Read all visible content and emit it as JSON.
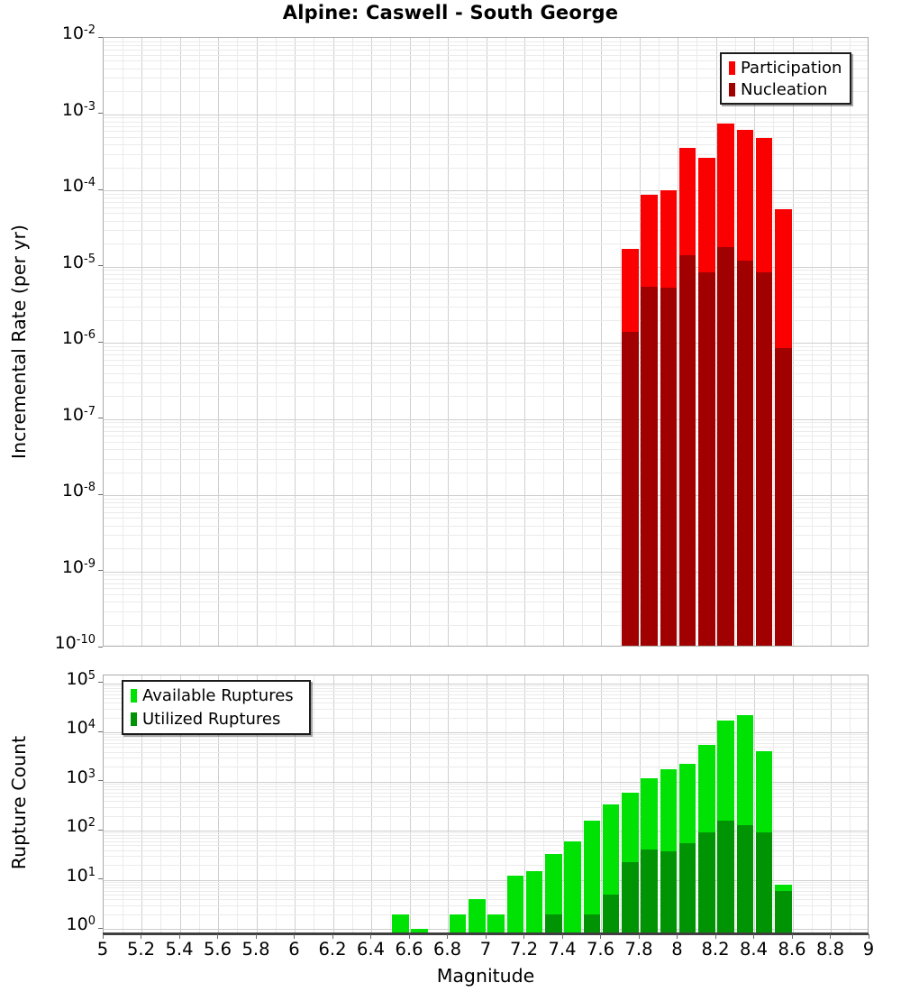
{
  "title": "Alpine: Caswell - South George",
  "colors": {
    "participation": "#FA0000",
    "nucleation": "#A00000",
    "available": "#00E104",
    "utilized": "#009404",
    "grid_major": "#cfcfcf",
    "grid_minor": "#ebebeb",
    "frame": "#ababab",
    "x_axis_line": "#3f3f3f",
    "legend_border": "#1c1c1c",
    "text": "#000000"
  },
  "x_axis": {
    "label": "Magnitude",
    "min": 5,
    "max": 9,
    "tick_step": 0.2,
    "tick_labels": [
      "5",
      "5.2",
      "5.4",
      "5.6",
      "5.8",
      "6",
      "6.2",
      "6.4",
      "6.6",
      "6.8",
      "7",
      "7.2",
      "7.4",
      "7.6",
      "7.8",
      "8",
      "8.2",
      "8.4",
      "8.6",
      "8.8",
      "9"
    ]
  },
  "chart_data": [
    {
      "type": "bar",
      "panel": "top",
      "title": "Alpine: Caswell - South George",
      "xlabel": "Magnitude",
      "ylabel": "Incremental Rate (per yr)",
      "y_scale": "log",
      "ylim": [
        1e-10,
        0.01
      ],
      "xlim": [
        5,
        9
      ],
      "grid": true,
      "legend_position": "top-right",
      "y_tick_exponents": [
        -2,
        -3,
        -4,
        -5,
        -6,
        -7,
        -8,
        -9,
        -10
      ],
      "bin_width": 0.1,
      "x": [
        7.7,
        7.8,
        7.9,
        8.0,
        8.1,
        8.2,
        8.3,
        8.4,
        8.5
      ],
      "series": [
        {
          "name": "Participation",
          "color_key": "participation",
          "values": [
            1.7e-05,
            8.8e-05,
            0.0001,
            0.00036,
            0.00027,
            0.00075,
            0.00062,
            0.00048,
            5.6e-05
          ]
        },
        {
          "name": "Nucleation",
          "color_key": "nucleation",
          "values": [
            1.4e-06,
            5.4e-06,
            5.2e-06,
            1.4e-05,
            8.3e-06,
            1.8e-05,
            1.2e-05,
            8.3e-06,
            8.5e-07
          ]
        }
      ]
    },
    {
      "type": "bar",
      "panel": "bottom",
      "title": "",
      "xlabel": "Magnitude",
      "ylabel": "Rupture Count",
      "y_scale": "log",
      "ylim": [
        1,
        100000.0
      ],
      "xlim": [
        5,
        9
      ],
      "grid": true,
      "legend_position": "top-left",
      "y_tick_exponents": [
        5,
        4,
        3,
        2,
        1,
        0
      ],
      "bin_width": 0.1,
      "x": [
        6.5,
        6.6,
        6.7,
        6.8,
        6.9,
        7.0,
        7.1,
        7.2,
        7.3,
        7.4,
        7.5,
        7.6,
        7.7,
        7.8,
        7.9,
        8.0,
        8.1,
        8.2,
        8.3,
        8.4,
        8.5
      ],
      "series": [
        {
          "name": "Available Ruptures",
          "color_key": "available",
          "values": [
            2,
            1,
            0,
            2,
            4,
            2,
            12,
            15,
            33,
            60,
            160,
            345,
            600,
            1150,
            1800,
            2250,
            5600,
            17000,
            22000,
            4100,
            8
          ]
        },
        {
          "name": "Utilized Ruptures",
          "color_key": "utilized",
          "values": [
            0,
            0,
            0,
            0,
            0,
            0,
            0,
            0,
            2,
            0,
            2,
            5,
            23,
            42,
            38,
            55,
            90,
            160,
            130,
            90,
            6
          ]
        }
      ]
    }
  ]
}
